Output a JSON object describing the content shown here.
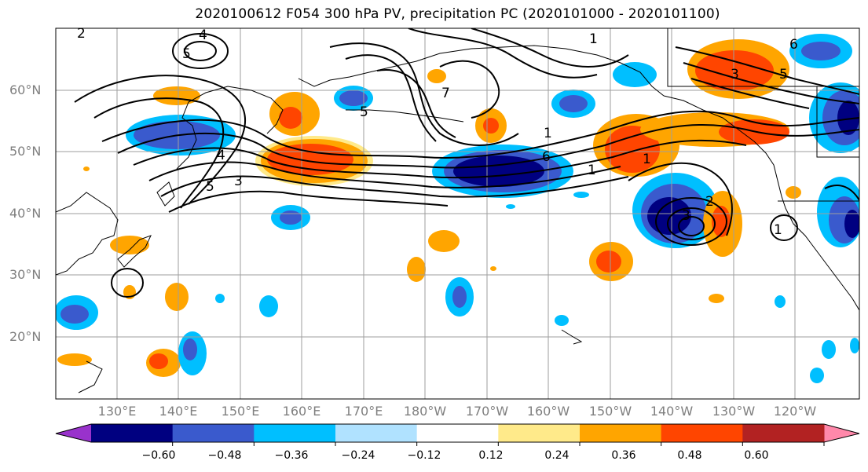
{
  "title": "2020100612 F054 300 hPa PV, precipitation PC (2020101000 - 2020101100)",
  "lat_labels": [
    "60°N",
    "50°N",
    "40°N",
    "30°N",
    "20°N"
  ],
  "lon_labels": [
    "130°E",
    "140°E",
    "150°E",
    "160°E",
    "170°E",
    "180°W",
    "170°W",
    "160°W",
    "150°W",
    "140°W",
    "130°W",
    "120°W"
  ],
  "colorbar": {
    "labels": [
      "−0.60",
      "−0.48",
      "−0.36",
      "−0.24",
      "−0.12",
      "0.12",
      "0.24",
      "0.36",
      "0.48",
      "0.60"
    ],
    "colors": [
      "#9932cc",
      "#000080",
      "#3a5acd",
      "#00bfff",
      "#b0e2ff",
      "#ffffff",
      "#ffea8a",
      "#ffa500",
      "#ff4500",
      "#b22222",
      "#ff88aa"
    ]
  },
  "contour_labels": [
    "4",
    "5",
    "2",
    "1",
    "7",
    "5",
    "1",
    "6",
    "1",
    "4",
    "5",
    "3",
    "1",
    "2",
    "3",
    "1",
    "3",
    "5",
    "6"
  ]
}
